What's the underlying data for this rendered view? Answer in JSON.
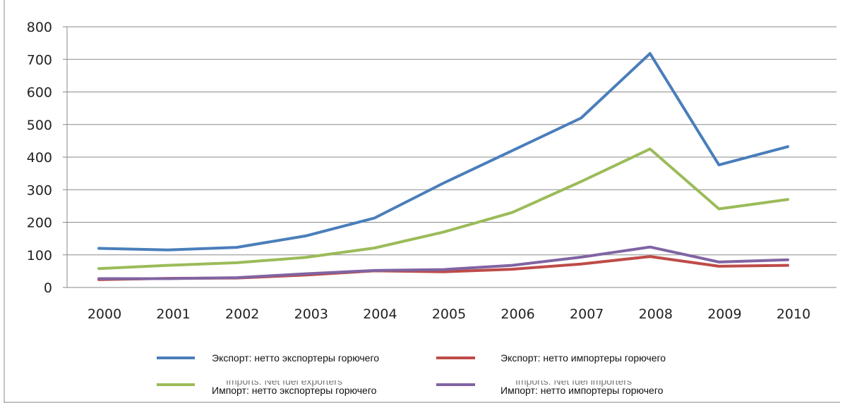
{
  "chart_data": {
    "type": "line",
    "categories": [
      "2000",
      "2001",
      "2002",
      "2003",
      "2004",
      "2005",
      "2006",
      "2007",
      "2008",
      "2009",
      "2010"
    ],
    "ylim": [
      0,
      800
    ],
    "yticks": [
      0,
      100,
      200,
      300,
      400,
      500,
      600,
      700,
      800
    ],
    "grid": true,
    "legend_position": "bottom",
    "series": [
      {
        "name": "Экспорт: нетто экспортеры горючего",
        "color": "#4a7ebb",
        "values": [
          120,
          115,
          123,
          158,
          213,
          320,
          420,
          520,
          718,
          376,
          432
        ]
      },
      {
        "name": "Импорт: нетто экспортеры горючего",
        "color": "#9bbb59",
        "values": [
          58,
          68,
          76,
          92,
          121,
          170,
          230,
          325,
          425,
          241,
          270
        ]
      },
      {
        "name": "Импорт: нетто импортеры горючего",
        "color": "#8064a2",
        "values": [
          27,
          27,
          30,
          42,
          52,
          55,
          68,
          93,
          124,
          78,
          85
        ]
      },
      {
        "name": "Экспорт: нетто импортеры горючего",
        "color": "#be4b48",
        "values": [
          24,
          28,
          29,
          38,
          51,
          48,
          56,
          72,
          95,
          65,
          68
        ]
      }
    ],
    "legend_ghost": [
      "Imports: Net fuel exporters",
      "Imports: Net fuel importers"
    ]
  }
}
